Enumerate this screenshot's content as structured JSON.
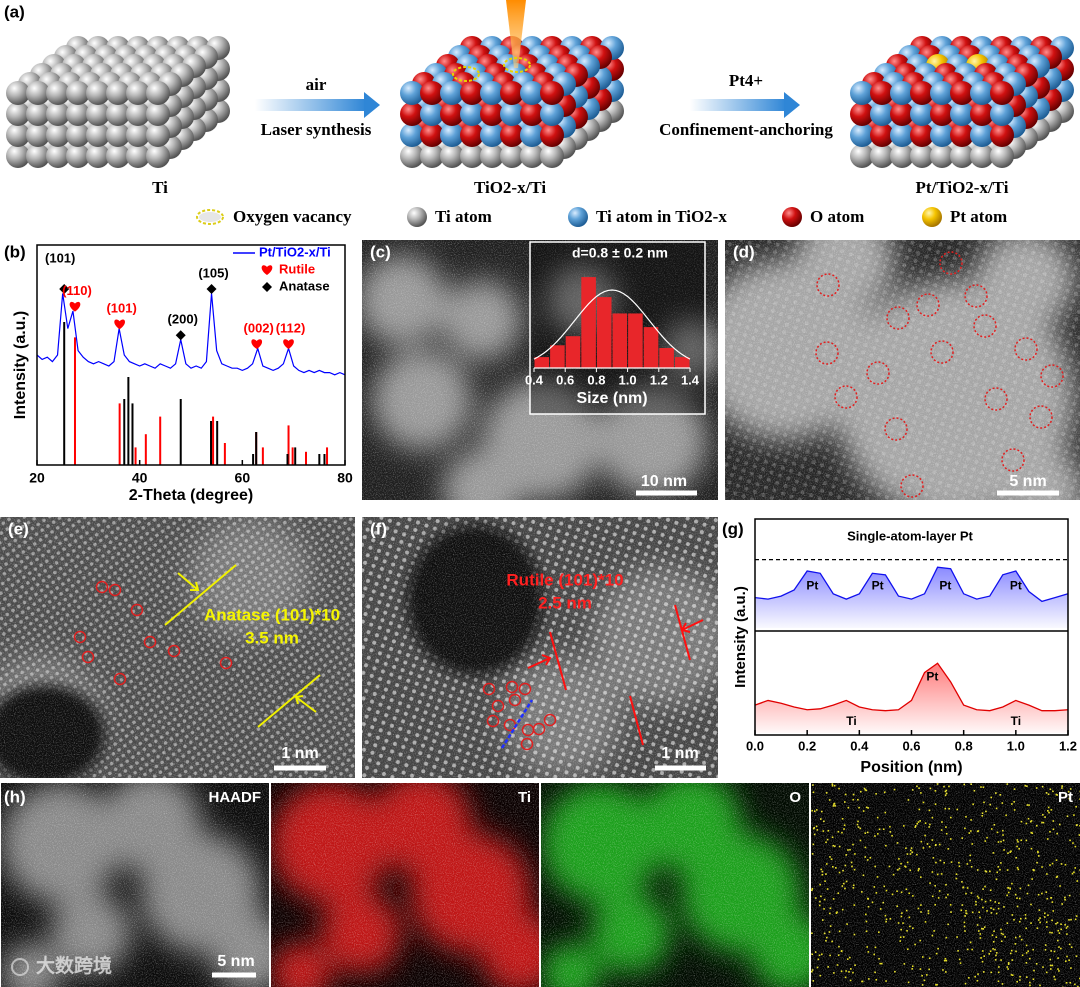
{
  "figure": {
    "panel_a": {
      "label": "(a)",
      "steps": [
        "Ti",
        "TiO2-x/Ti",
        "Pt/TiO2-x/Ti"
      ],
      "arrow1": {
        "top": "air",
        "bottom": "Laser synthesis"
      },
      "arrow2": {
        "top": "Pt4+",
        "bottom": "Confinement-anchoring"
      },
      "legend": [
        "Oxygen vacancy",
        "Ti atom",
        "Ti atom in TiO2-x",
        "O atom",
        "Pt atom"
      ]
    },
    "panel_c": {
      "label": "(c)",
      "scale_bar": "10 nm"
    },
    "panel_d": {
      "label": "(d)",
      "scale_bar": "5 nm"
    },
    "panel_e": {
      "label": "(e)",
      "annotation": "Anatase (101)*10",
      "spacing": "3.5 nm",
      "scale_bar": "1 nm"
    },
    "panel_f": {
      "label": "(f)",
      "annotation": "Rutile (101)*10",
      "spacing": "2.5 nm",
      "scale_bar": "1 nm"
    },
    "panel_h": {
      "label": "(h)",
      "maps": [
        "HAADF",
        "Ti",
        "O",
        "Pt"
      ],
      "scale_bar": "5 nm"
    },
    "watermark": "大数跨境"
  },
  "chart_data": [
    {
      "type": "line",
      "label": "(b)",
      "xlabel": "2-Theta (degree)",
      "ylabel": "Intensity (a.u.)",
      "x": [
        20,
        21,
        22,
        23,
        24,
        25,
        26,
        27,
        28,
        29,
        30,
        31,
        32,
        33,
        34,
        35,
        36,
        37,
        38,
        39,
        40,
        41,
        42,
        43,
        44,
        45,
        46,
        47,
        48,
        49,
        50,
        51,
        52,
        53,
        54,
        55,
        56,
        57,
        58,
        59,
        60,
        61,
        62,
        63,
        64,
        65,
        66,
        67,
        68,
        69,
        70,
        71,
        72,
        73,
        74,
        75,
        76,
        77,
        78,
        79,
        80
      ],
      "series": [
        {
          "name": "Pt/TiO2-x/Ti",
          "color": "#0000ff",
          "values": [
            50,
            48,
            49,
            47,
            50,
            78,
            62,
            70,
            52,
            49,
            47,
            46,
            47,
            46,
            45,
            47,
            62,
            50,
            47,
            46,
            45,
            46,
            45,
            44,
            46,
            45,
            44,
            46,
            57,
            46,
            44,
            45,
            44,
            47,
            78,
            52,
            46,
            45,
            44,
            44,
            43,
            44,
            46,
            53,
            45,
            44,
            43,
            44,
            46,
            53,
            45,
            43,
            42,
            43,
            42,
            43,
            42,
            42,
            41,
            42,
            41
          ]
        }
      ],
      "references": [
        {
          "name": "Rutile",
          "color": "#ff0000",
          "x": [
            27.4,
            36.1,
            39.2,
            41.2,
            44.0,
            54.3,
            56.6,
            62.7,
            64.0,
            69.0,
            69.8,
            72.4,
            76.5
          ],
          "values": [
            58,
            28,
            8,
            14,
            22,
            22,
            10,
            15,
            8,
            18,
            8,
            6,
            8
          ]
        },
        {
          "name": "Anatase",
          "color": "#000000",
          "x": [
            25.3,
            37.0,
            37.8,
            38.6,
            48.0,
            53.9,
            55.1,
            62.1,
            62.7,
            68.8,
            70.3,
            75.0,
            76.0
          ],
          "values": [
            65,
            30,
            40,
            28,
            30,
            20,
            20,
            5,
            15,
            5,
            8,
            5,
            5
          ]
        }
      ],
      "peaks": [
        {
          "label": "(101)",
          "x": 25.3,
          "y": 80,
          "phase": "Anatase"
        },
        {
          "label": "(110)",
          "x": 27.4,
          "y": 72,
          "phase": "Rutile"
        },
        {
          "label": "(101)",
          "x": 36.1,
          "y": 64,
          "phase": "Rutile"
        },
        {
          "label": "(200)",
          "x": 48.0,
          "y": 59,
          "phase": "Anatase"
        },
        {
          "label": "(105)",
          "x": 54.0,
          "y": 80,
          "phase": "Anatase"
        },
        {
          "label": "(002)",
          "x": 62.8,
          "y": 55,
          "phase": "Rutile"
        },
        {
          "label": "(112)",
          "x": 69.0,
          "y": 55,
          "phase": "Rutile"
        }
      ],
      "xlim": [
        20,
        80
      ],
      "xticks": [
        20,
        40,
        60,
        80
      ],
      "ylim": [
        0,
        100
      ],
      "legend": "upper right"
    },
    {
      "type": "histogram",
      "title": "d=0.8 ± 0.2 nm",
      "xlabel": "Size (nm)",
      "bins": [
        0.4,
        0.5,
        0.6,
        0.7,
        0.8,
        0.9,
        1.0,
        1.1,
        1.2,
        1.3,
        1.4
      ],
      "values": [
        12,
        25,
        35,
        100,
        78,
        60,
        60,
        45,
        22,
        12
      ],
      "color": "#e8262a",
      "xlim": [
        0.4,
        1.4
      ],
      "xticks": [
        0.4,
        0.6,
        0.8,
        {
          "value": 1.0,
          "label": "1.0"
        },
        1.2,
        1.4
      ],
      "ylim": [
        0,
        110
      ]
    },
    {
      "type": "profile",
      "label": "(g)",
      "title": "Single-atom-layer Pt",
      "xlabel": "Position (nm)",
      "ylabel": "Intensity (a.u.)",
      "x": [
        0,
        0.05,
        0.1,
        0.15,
        0.2,
        0.25,
        0.3,
        0.35,
        0.4,
        0.45,
        0.5,
        0.55,
        0.6,
        0.65,
        0.7,
        0.75,
        0.8,
        0.85,
        0.9,
        0.95,
        1.0,
        1.05,
        1.1,
        1.15,
        1.2
      ],
      "series": [
        {
          "color": "#1010ee",
          "values": [
            40,
            38,
            42,
            50,
            75,
            72,
            45,
            38,
            45,
            72,
            70,
            42,
            38,
            45,
            80,
            78,
            45,
            38,
            42,
            70,
            75,
            48,
            35,
            40,
            45
          ]
        },
        {
          "color": "#e00000",
          "values": [
            30,
            35,
            32,
            28,
            25,
            26,
            30,
            35,
            28,
            25,
            24,
            25,
            35,
            65,
            75,
            55,
            30,
            25,
            24,
            28,
            35,
            30,
            24,
            24,
            25
          ]
        }
      ],
      "ref_line": 90,
      "annotations": [
        {
          "text": "Pt",
          "x": 0.22,
          "y": 55,
          "series": 0
        },
        {
          "text": "Pt",
          "x": 0.47,
          "y": 55,
          "series": 0
        },
        {
          "text": "Pt",
          "x": 0.73,
          "y": 55,
          "series": 0
        },
        {
          "text": "Pt",
          "x": 1.0,
          "y": 55,
          "series": 0
        },
        {
          "text": "Pt",
          "x": 0.68,
          "y": 60,
          "series": 1
        },
        {
          "text": "Ti",
          "x": 0.37,
          "y": 12,
          "series": 1
        },
        {
          "text": "Ti",
          "x": 1.0,
          "y": 12,
          "series": 1
        }
      ],
      "xlim": [
        0,
        1.2
      ],
      "xticks": [
        {
          "value": 0,
          "label": "0.0"
        },
        0.2,
        0.4,
        0.6,
        0.8,
        {
          "value": 1.0,
          "label": "1.0"
        },
        1.2
      ],
      "ylim": [
        0,
        100
      ]
    }
  ]
}
